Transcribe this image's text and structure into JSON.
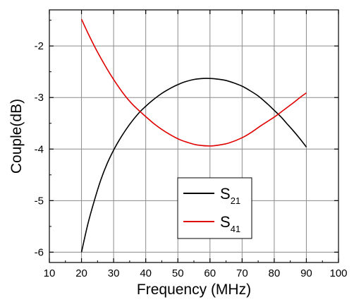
{
  "chart_data": {
    "type": "line",
    "title": "",
    "xlabel": "Frequency (MHz)",
    "ylabel": "Couple(dB)",
    "xlim": [
      10,
      100
    ],
    "ylim": [
      -6.2,
      -1.3
    ],
    "xticks": [
      "10",
      "20",
      "30",
      "40",
      "50",
      "60",
      "70",
      "80",
      "90",
      "100"
    ],
    "yticks": [
      "-2",
      "-3",
      "-4",
      "-5",
      "-6"
    ],
    "grid": true,
    "legend_position": "bottom-center",
    "series": [
      {
        "name": "S",
        "subscript": "21",
        "color": "#000000",
        "x": [
          20,
          22,
          24,
          26,
          28,
          30,
          32,
          35,
          38,
          40,
          42,
          45,
          48,
          50,
          52,
          55,
          58,
          60,
          62,
          65,
          68,
          70,
          72,
          75,
          78,
          80,
          82,
          84,
          86,
          88,
          90
        ],
        "y": [
          -6.0,
          -5.45,
          -5.0,
          -4.6,
          -4.28,
          -4.02,
          -3.8,
          -3.52,
          -3.29,
          -3.17,
          -3.06,
          -2.92,
          -2.81,
          -2.75,
          -2.7,
          -2.65,
          -2.63,
          -2.63,
          -2.64,
          -2.67,
          -2.73,
          -2.78,
          -2.85,
          -2.97,
          -3.13,
          -3.25,
          -3.37,
          -3.51,
          -3.65,
          -3.8,
          -3.96
        ]
      },
      {
        "name": "S",
        "subscript": "41",
        "color": "#e00000",
        "x": [
          20,
          22,
          25,
          28,
          30,
          33,
          36,
          40,
          43,
          46,
          50,
          53,
          56,
          60,
          63,
          66,
          70,
          73,
          76,
          80,
          83,
          86,
          88,
          90
        ],
        "y": [
          -1.48,
          -1.75,
          -2.12,
          -2.45,
          -2.65,
          -2.92,
          -3.14,
          -3.37,
          -3.53,
          -3.66,
          -3.8,
          -3.87,
          -3.92,
          -3.94,
          -3.92,
          -3.88,
          -3.78,
          -3.67,
          -3.54,
          -3.38,
          -3.24,
          -3.1,
          -3.0,
          -2.91
        ]
      }
    ]
  }
}
